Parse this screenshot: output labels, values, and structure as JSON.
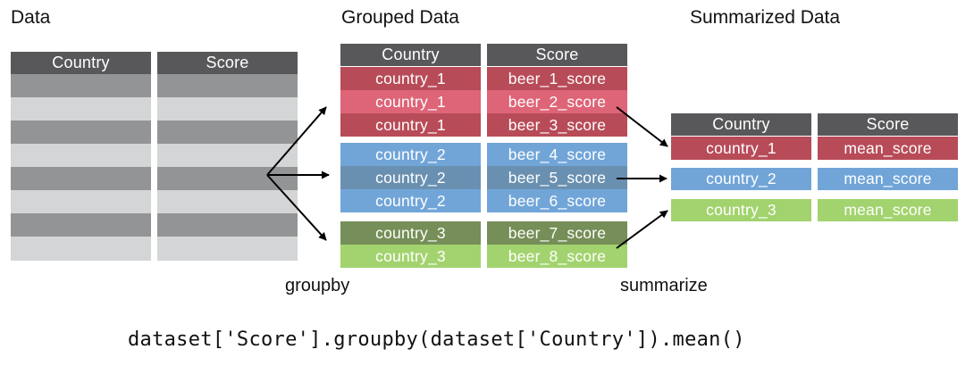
{
  "titles": {
    "data": "Data",
    "grouped": "Grouped Data",
    "summarized": "Summarized Data"
  },
  "headers": {
    "country": "Country",
    "score": "Score"
  },
  "grouped_rows": [
    {
      "country": "country_1",
      "score": "beer_1_score"
    },
    {
      "country": "country_1",
      "score": "beer_2_score"
    },
    {
      "country": "country_1",
      "score": "beer_3_score"
    },
    {
      "country": "country_2",
      "score": "beer_4_score"
    },
    {
      "country": "country_2",
      "score": "beer_5_score"
    },
    {
      "country": "country_2",
      "score": "beer_6_score"
    },
    {
      "country": "country_3",
      "score": "beer_7_score"
    },
    {
      "country": "country_3",
      "score": "beer_8_score"
    }
  ],
  "summary_rows": [
    {
      "country": "country_1",
      "score": "mean_score"
    },
    {
      "country": "country_2",
      "score": "mean_score"
    },
    {
      "country": "country_3",
      "score": "mean_score"
    }
  ],
  "labels": {
    "groupby": "groupby",
    "summarize": "summarize"
  },
  "code": "dataset['Score'].groupby(dataset['Country']).mean()",
  "colors": {
    "header": "#58585a",
    "gray_dark": "#939496",
    "gray_light": "#d4d5d6",
    "red": "#b84b58",
    "red_highlight": "#de6477",
    "blue": "#71a5d8",
    "blue_highlight": "#6a90b1",
    "green_dark": "#768e57",
    "green": "#a2d36e"
  }
}
